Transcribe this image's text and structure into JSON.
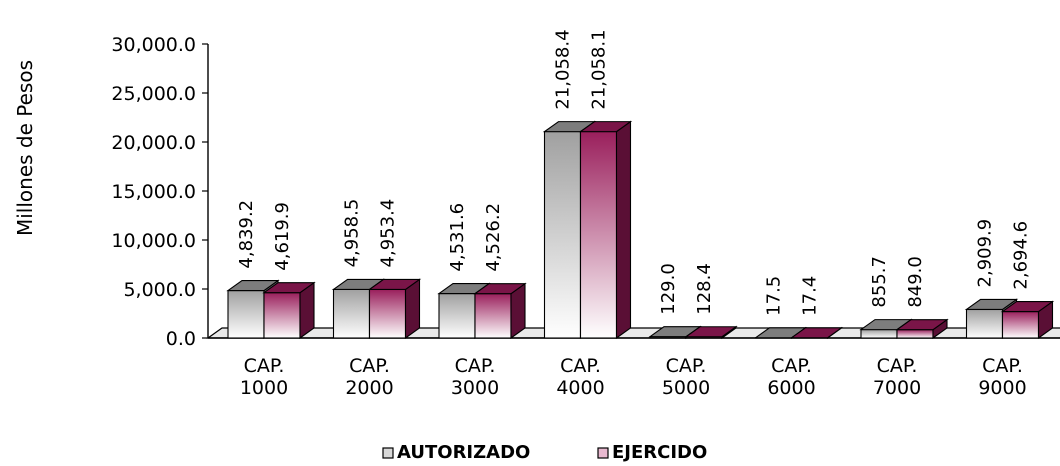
{
  "chart_data": {
    "type": "bar",
    "title": "",
    "xlabel": "",
    "ylabel": "Millones de Pesos",
    "ylim": [
      0,
      30000
    ],
    "yticks": [
      "0.0",
      "5,000.0",
      "10,000.0",
      "15,000.0",
      "20,000.0",
      "25,000.0",
      "30,000.0"
    ],
    "categories": [
      [
        "CAP.",
        "1000"
      ],
      [
        "CAP.",
        "2000"
      ],
      [
        "CAP.",
        "3000"
      ],
      [
        "CAP.",
        "4000"
      ],
      [
        "CAP.",
        "5000"
      ],
      [
        "CAP.",
        "6000"
      ],
      [
        "CAP.",
        "7000"
      ],
      [
        "CAP.",
        "9000"
      ]
    ],
    "series": [
      {
        "name": "AUTORIZADO",
        "values": [
          4839.2,
          4958.5,
          4531.6,
          21058.4,
          129.0,
          17.5,
          855.7,
          2909.9
        ],
        "labels": [
          "4,839.2",
          "4,958.5",
          "4,531.6",
          "21,058.4",
          "129.0",
          "17.5",
          "855.7",
          "2,909.9"
        ],
        "color": "#a8a8a8",
        "top_color": "#7d7d7d",
        "side_color": "#6a6a6a"
      },
      {
        "name": "EJERCIDO",
        "values": [
          4619.9,
          4953.4,
          4526.2,
          21058.1,
          128.4,
          17.4,
          849.0,
          2694.6
        ],
        "labels": [
          "4,619.9",
          "4,953.4",
          "4,526.2",
          "21,058.1",
          "128.4",
          "17.4",
          "849.0",
          "2,694.6"
        ],
        "color": "#9a1f5c",
        "top_color": "#7a1548",
        "side_color": "#5a0f35"
      }
    ],
    "grid": false,
    "legend_position": "bottom",
    "style": "3d-clustered-column"
  }
}
